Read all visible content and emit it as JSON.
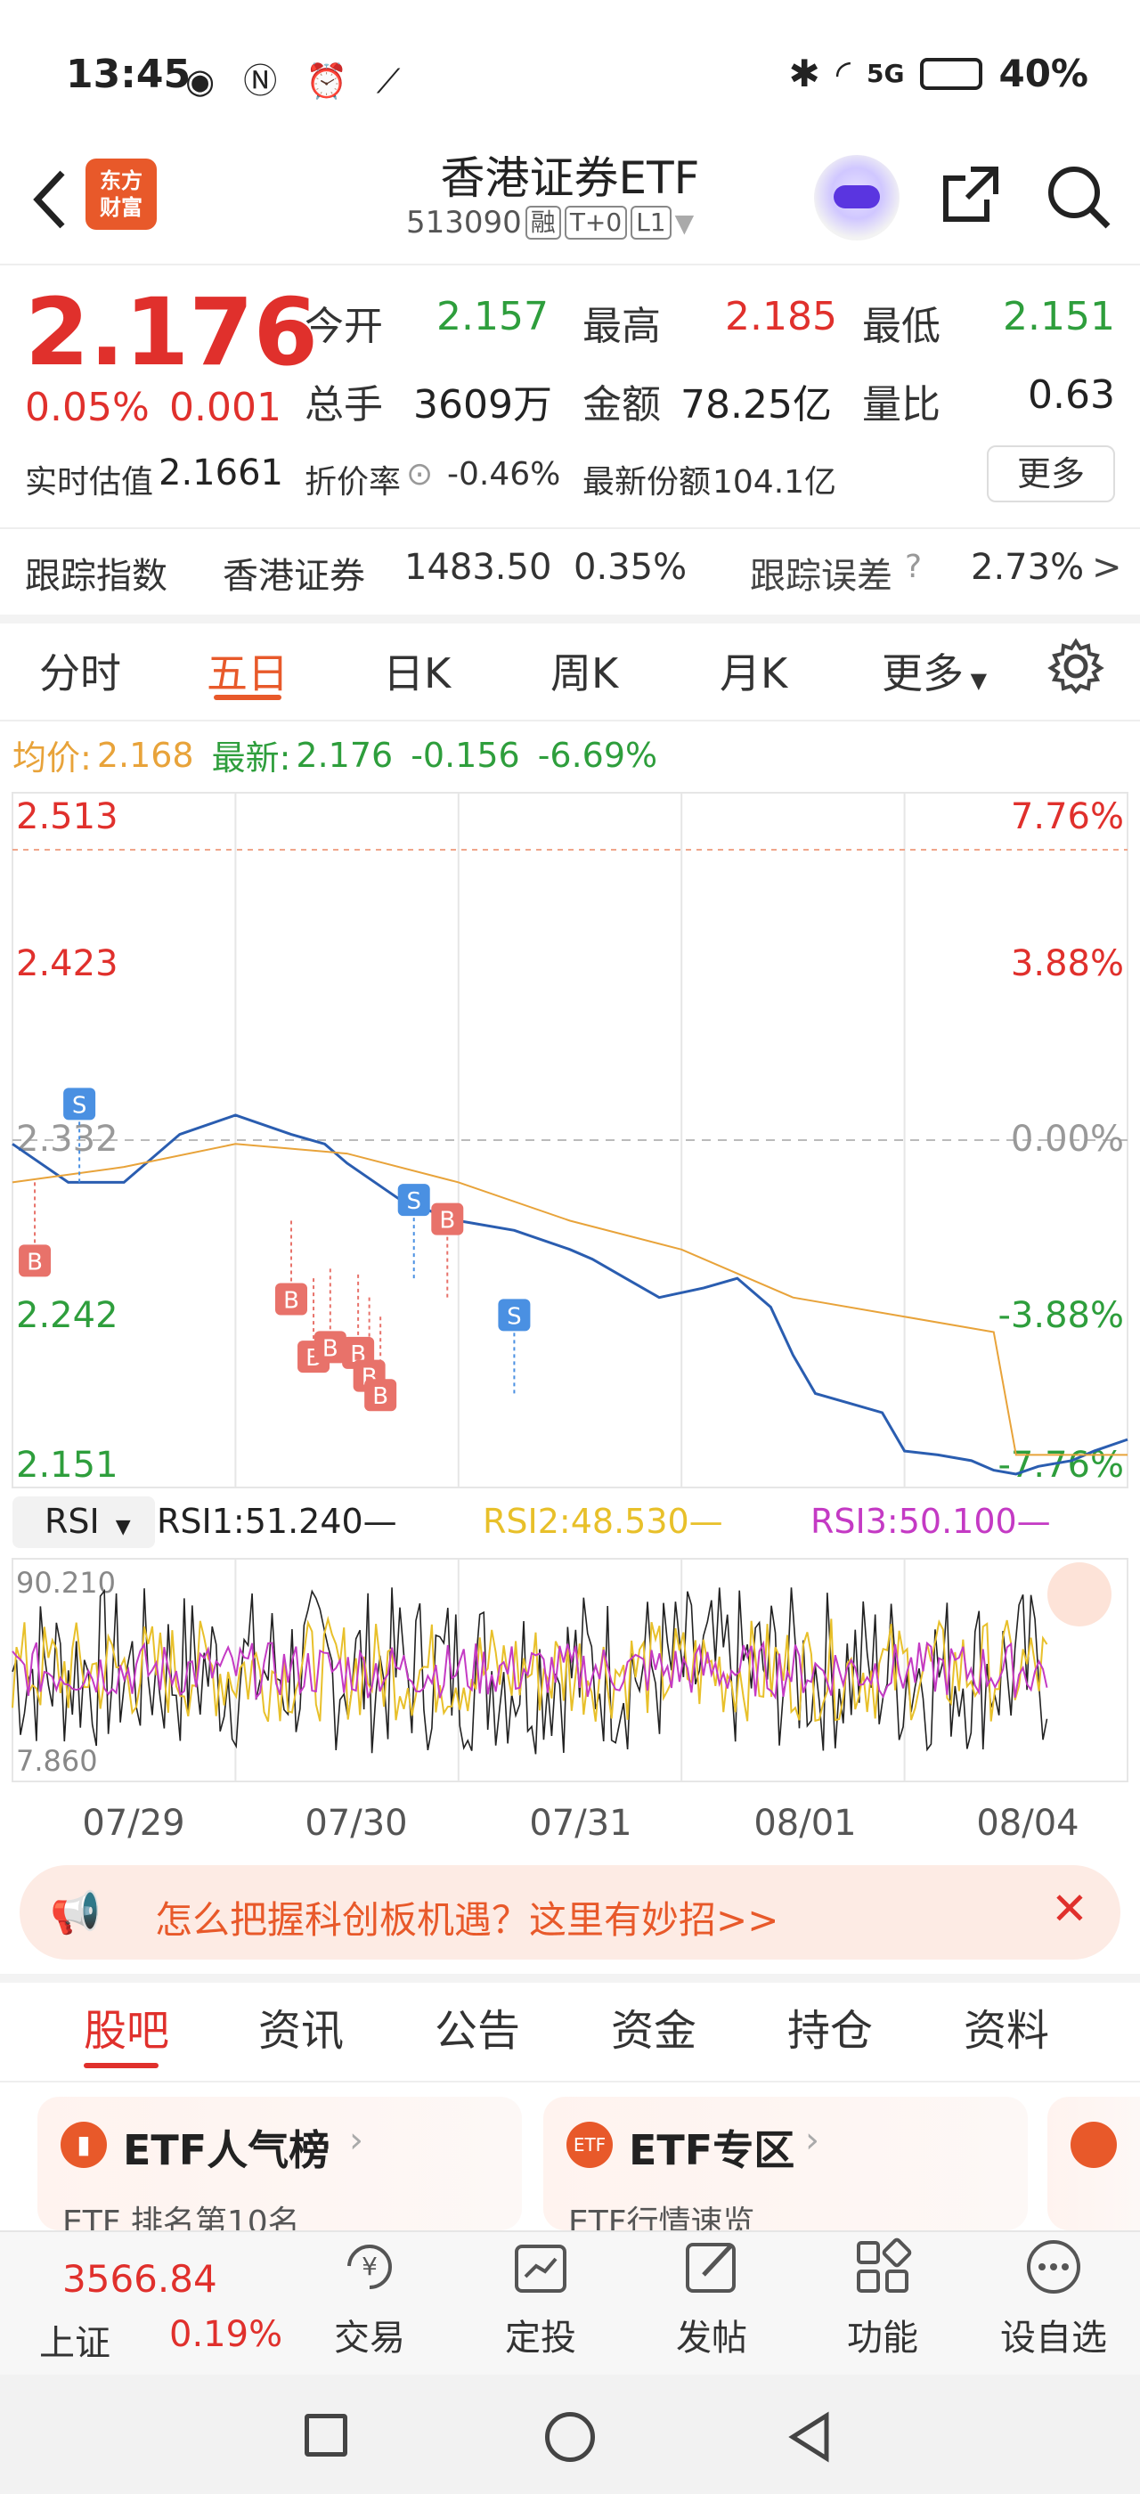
{
  "status_bar": {
    "time": "13:45",
    "battery": "40%",
    "network": "5G"
  },
  "header": {
    "logo_text": "东方\n财富",
    "title": "香港证券ETF",
    "code": "513090",
    "tags": [
      "融",
      "T+0",
      "L1"
    ]
  },
  "quote": {
    "price": "2.176",
    "change_pct": "0.05%",
    "change": "0.001",
    "fields": [
      {
        "label": "今开",
        "value": "2.157",
        "color": "green"
      },
      {
        "label": "最高",
        "value": "2.185",
        "color": "red"
      },
      {
        "label": "最低",
        "value": "2.151",
        "color": "green"
      },
      {
        "label": "总手",
        "value": "3609万",
        "color": "black"
      },
      {
        "label": "金额",
        "value": "78.25亿",
        "color": "black"
      },
      {
        "label": "量比",
        "value": "0.63",
        "color": "black"
      }
    ],
    "iopv_label": "实时估值",
    "iopv": "2.1661",
    "discount_label": "折价率",
    "discount": "-0.46%",
    "shares_label": "最新份额",
    "shares": "104.1亿",
    "more": "更多"
  },
  "tracking": {
    "label": "跟踪指数",
    "index": "香港证券",
    "value": "1483.50",
    "pct": "0.35%",
    "error_label": "跟踪误差",
    "error": "2.73%"
  },
  "chart_tabs": [
    "分时",
    "五日",
    "日K",
    "周K",
    "月K",
    "更多"
  ],
  "chart_tab_active": 1,
  "legend": {
    "avg_label": "均价:",
    "avg": "2.168",
    "latest_label": "最新:",
    "latest": "2.176",
    "diff": "-0.156",
    "diff_pct": "-6.69%"
  },
  "chart_data": {
    "type": "line",
    "title": "",
    "y_ticks_left": [
      "2.513",
      "2.423",
      "2.332",
      "2.242",
      "2.151"
    ],
    "y_ticks_right": [
      "7.76%",
      "3.88%",
      "0.00%",
      "-3.88%",
      "-7.76%"
    ],
    "ylim": [
      2.151,
      2.513
    ],
    "x_labels": [
      "07/29",
      "07/30",
      "07/31",
      "08/01",
      "08/04"
    ],
    "series": [
      {
        "name": "最新",
        "color": "#2a5db0",
        "x": [
          0,
          0.05,
          0.1,
          0.15,
          0.2,
          0.25,
          0.28,
          0.3,
          0.35,
          0.4,
          0.45,
          0.5,
          0.52,
          0.55,
          0.58,
          0.62,
          0.65,
          0.68,
          0.7,
          0.72,
          0.75,
          0.78,
          0.8,
          0.83,
          0.86,
          0.88,
          0.9,
          0.92,
          0.95,
          0.97,
          1.0
        ],
        "y": [
          2.33,
          2.31,
          2.31,
          2.335,
          2.345,
          2.335,
          2.33,
          2.32,
          2.3,
          2.29,
          2.285,
          2.275,
          2.27,
          2.26,
          2.25,
          2.255,
          2.26,
          2.245,
          2.22,
          2.2,
          2.195,
          2.19,
          2.17,
          2.168,
          2.165,
          2.16,
          2.158,
          2.162,
          2.165,
          2.17,
          2.176
        ]
      },
      {
        "name": "均价",
        "color": "#e8a33a",
        "x": [
          0,
          0.1,
          0.2,
          0.3,
          0.4,
          0.5,
          0.6,
          0.7,
          0.8,
          0.88,
          0.9,
          1.0
        ],
        "y": [
          2.31,
          2.318,
          2.33,
          2.325,
          2.31,
          2.29,
          2.275,
          2.25,
          2.24,
          2.232,
          2.168,
          2.168
        ]
      }
    ],
    "rsi": {
      "selector": "RSI",
      "rsi1": "RSI1:51.240—",
      "rsi2": "RSI2:48.530—",
      "rsi3": "RSI3:50.100—",
      "top": "90.210",
      "bottom": "7.860"
    }
  },
  "ad": {
    "text": "怎么把握科创板机遇？这里有妙招>>"
  },
  "bottom_tabs": [
    "股吧",
    "资讯",
    "公告",
    "资金",
    "持仓",
    "资料"
  ],
  "bottom_tab_active": 0,
  "cards": [
    {
      "title": "ETF人气榜",
      "sub": "ETF 排名第10名"
    },
    {
      "title": "ETF专区",
      "sub": "ETF行情速览"
    }
  ],
  "index_widget": {
    "value": "3566.84",
    "name": "上证",
    "pct": "0.19%"
  },
  "bottom_nav": [
    "交易",
    "定投",
    "发帖",
    "功能",
    "设自选"
  ],
  "colors": {
    "accent": "#e8592a",
    "up": "#e0302c",
    "down": "#2e9e3c"
  }
}
